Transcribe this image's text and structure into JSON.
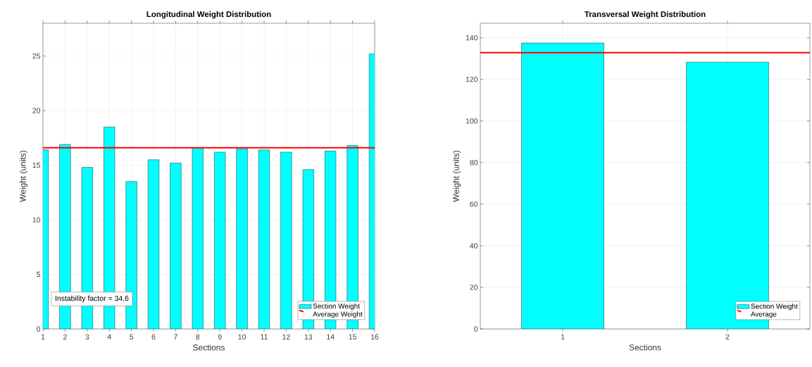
{
  "chart_data": [
    {
      "type": "bar",
      "title": "Longitudinal Weight Distribution",
      "xlabel": "Sections",
      "ylabel": "Weight (units)",
      "x": [
        1,
        2,
        3,
        4,
        5,
        6,
        7,
        8,
        9,
        10,
        11,
        12,
        13,
        14,
        15,
        16
      ],
      "xlim": [
        1,
        16
      ],
      "xticks": [
        1,
        2,
        3,
        4,
        5,
        6,
        7,
        8,
        9,
        10,
        11,
        12,
        13,
        14,
        15,
        16
      ],
      "ylim": [
        0,
        28
      ],
      "yticks": [
        0,
        5,
        10,
        15,
        20,
        25
      ],
      "series": [
        {
          "name": "Section Weight",
          "color": "#00ffff",
          "values": [
            16.4,
            16.9,
            14.8,
            18.5,
            13.5,
            15.5,
            15.2,
            16.6,
            16.2,
            16.5,
            16.4,
            16.2,
            14.6,
            16.3,
            16.8,
            25.2
          ]
        }
      ],
      "ref_lines": [
        {
          "axis": "y",
          "value": 16.6,
          "label": "Average Weight",
          "color": "#ff0000"
        }
      ],
      "annotations": [
        "Instability factor = 34.6"
      ],
      "grid": true,
      "legend": "bottom right"
    },
    {
      "type": "bar",
      "title": "Transversal Weight Distribution",
      "xlabel": "Sections",
      "ylabel": "Weight (units)",
      "categories": [
        "1",
        "2"
      ],
      "ylim": [
        0,
        147
      ],
      "yticks": [
        0,
        20,
        40,
        60,
        80,
        100,
        120,
        140
      ],
      "series": [
        {
          "name": "Section Weight",
          "color": "#00ffff",
          "values": [
            137.5,
            128.3
          ]
        }
      ],
      "ref_lines": [
        {
          "axis": "y",
          "value": 132.9,
          "label": "Average",
          "color": "#ff0000"
        }
      ],
      "grid": true,
      "legend": "bottom right"
    }
  ]
}
